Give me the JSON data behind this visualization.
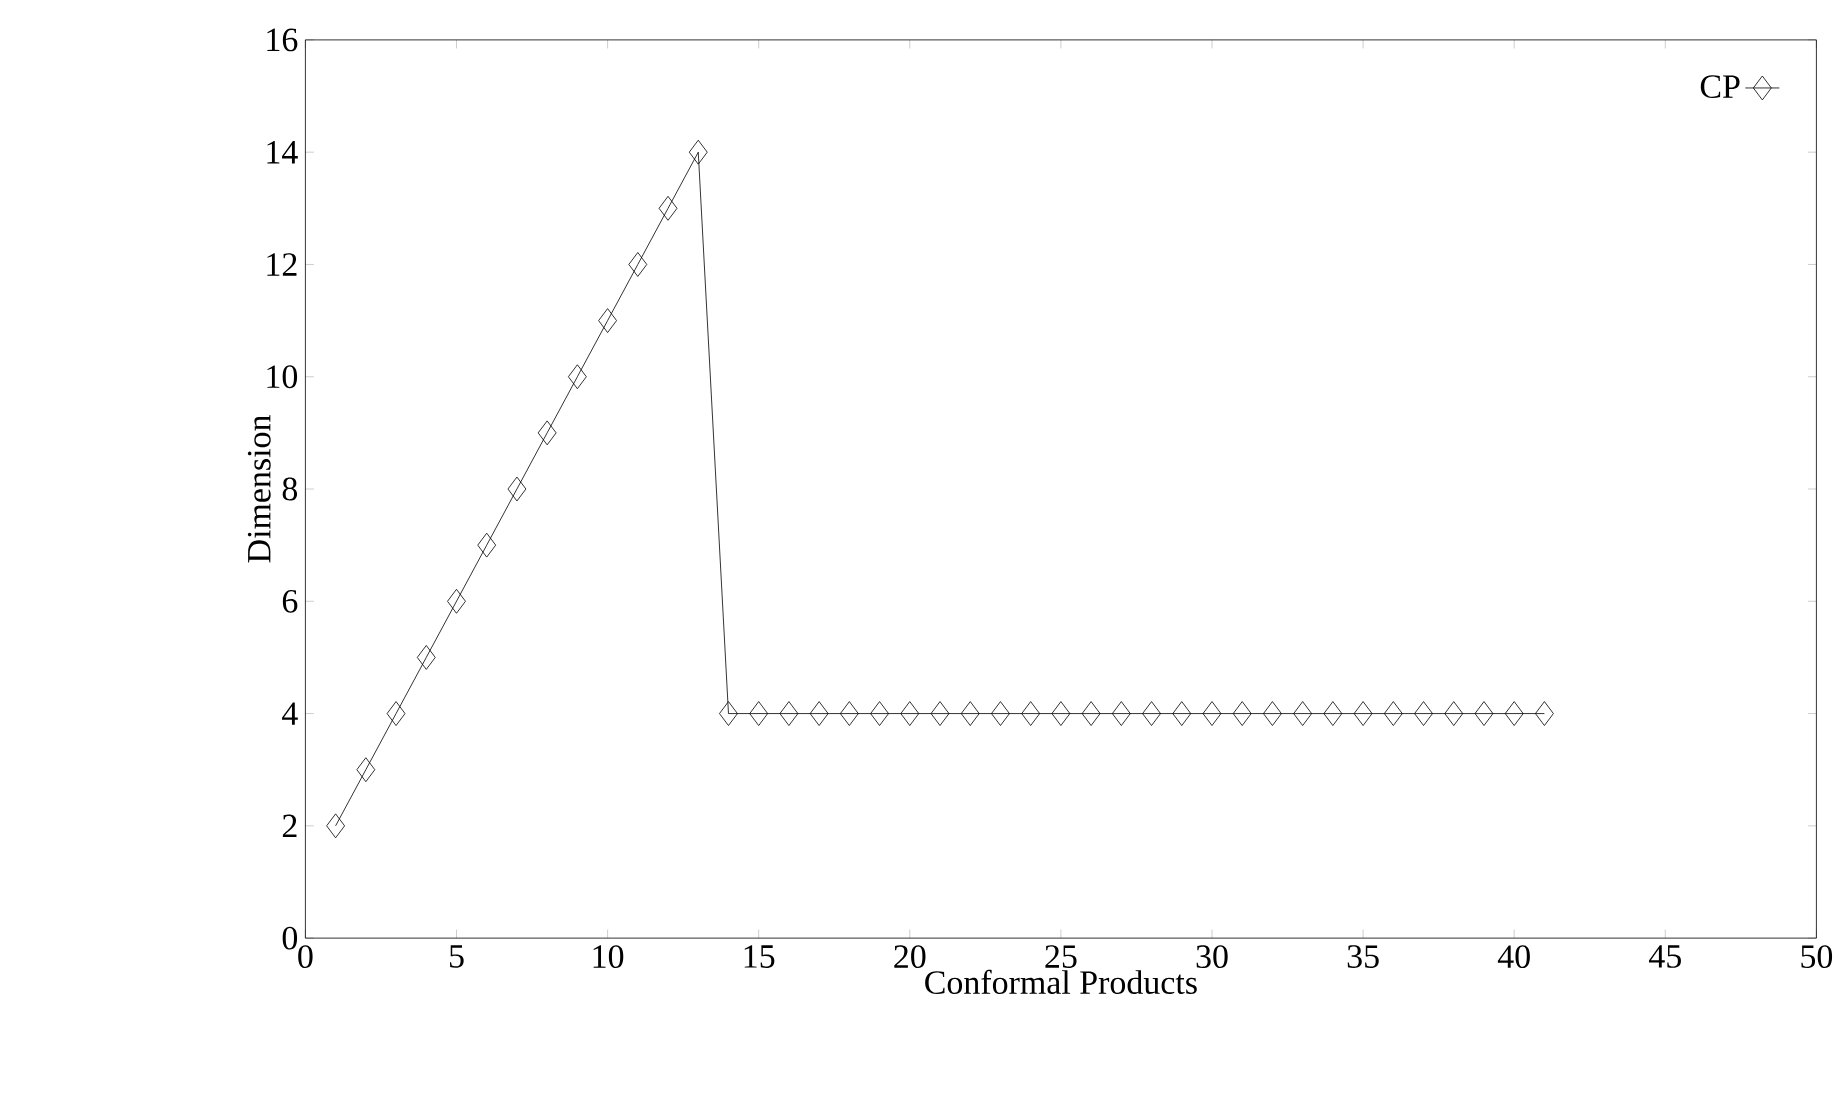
{
  "chart_data": {
    "type": "line",
    "xlabel": "Conformal Products",
    "ylabel": "Dimension",
    "x": [
      1,
      2,
      3,
      4,
      5,
      6,
      7,
      8,
      9,
      10,
      11,
      12,
      13,
      14,
      15,
      16,
      17,
      18,
      19,
      20,
      21,
      22,
      23,
      24,
      25,
      26,
      27,
      28,
      29,
      30,
      31,
      32,
      33,
      34,
      35,
      36,
      37,
      38,
      39,
      40,
      41
    ],
    "series": [
      {
        "name": "CP",
        "color": "#000000",
        "values": [
          2,
          3,
          4,
          5,
          6,
          7,
          8,
          9,
          10,
          11,
          12,
          13,
          14,
          4,
          4,
          4,
          4,
          4,
          4,
          4,
          4,
          4,
          4,
          4,
          4,
          4,
          4,
          4,
          4,
          4,
          4,
          4,
          4,
          4,
          4,
          4,
          4,
          4,
          4,
          4,
          4
        ]
      }
    ],
    "xlim": [
      0,
      50
    ],
    "xticks": [
      0,
      5,
      10,
      15,
      20,
      25,
      30,
      35,
      40,
      45,
      50
    ],
    "ylim": [
      0,
      16
    ],
    "yticks": [
      0,
      2,
      4,
      6,
      8,
      10,
      12,
      14,
      16
    ],
    "grid": false,
    "legend": "top right",
    "marker": "diamond",
    "line_style": "solid"
  }
}
